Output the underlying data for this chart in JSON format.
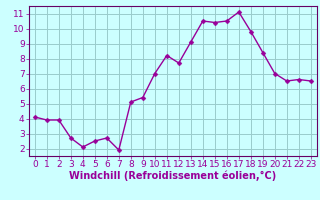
{
  "x": [
    0,
    1,
    2,
    3,
    4,
    5,
    6,
    7,
    8,
    9,
    10,
    11,
    12,
    13,
    14,
    15,
    16,
    17,
    18,
    19,
    20,
    21,
    22,
    23
  ],
  "y": [
    4.1,
    3.9,
    3.9,
    2.7,
    2.1,
    2.5,
    2.7,
    1.9,
    5.1,
    5.4,
    7.0,
    8.2,
    7.7,
    9.1,
    10.5,
    10.4,
    10.5,
    11.1,
    9.8,
    8.4,
    7.0,
    6.5,
    6.6,
    6.5
  ],
  "line_color": "#990099",
  "marker_color": "#990099",
  "bg_color": "#ccffff",
  "grid_color": "#99cccc",
  "xlabel": "Windchill (Refroidissement éolien,°C)",
  "xlabel_color": "#990099",
  "tick_color": "#990099",
  "spine_color": "#660066",
  "ylim": [
    1.5,
    11.5
  ],
  "xlim": [
    -0.5,
    23.5
  ],
  "yticks": [
    2,
    3,
    4,
    5,
    6,
    7,
    8,
    9,
    10,
    11
  ],
  "xticks": [
    0,
    1,
    2,
    3,
    4,
    5,
    6,
    7,
    8,
    9,
    10,
    11,
    12,
    13,
    14,
    15,
    16,
    17,
    18,
    19,
    20,
    21,
    22,
    23
  ],
  "marker_size": 2.5,
  "line_width": 1.0,
  "font_size_ticks": 6.5,
  "font_size_xlabel": 7.0
}
